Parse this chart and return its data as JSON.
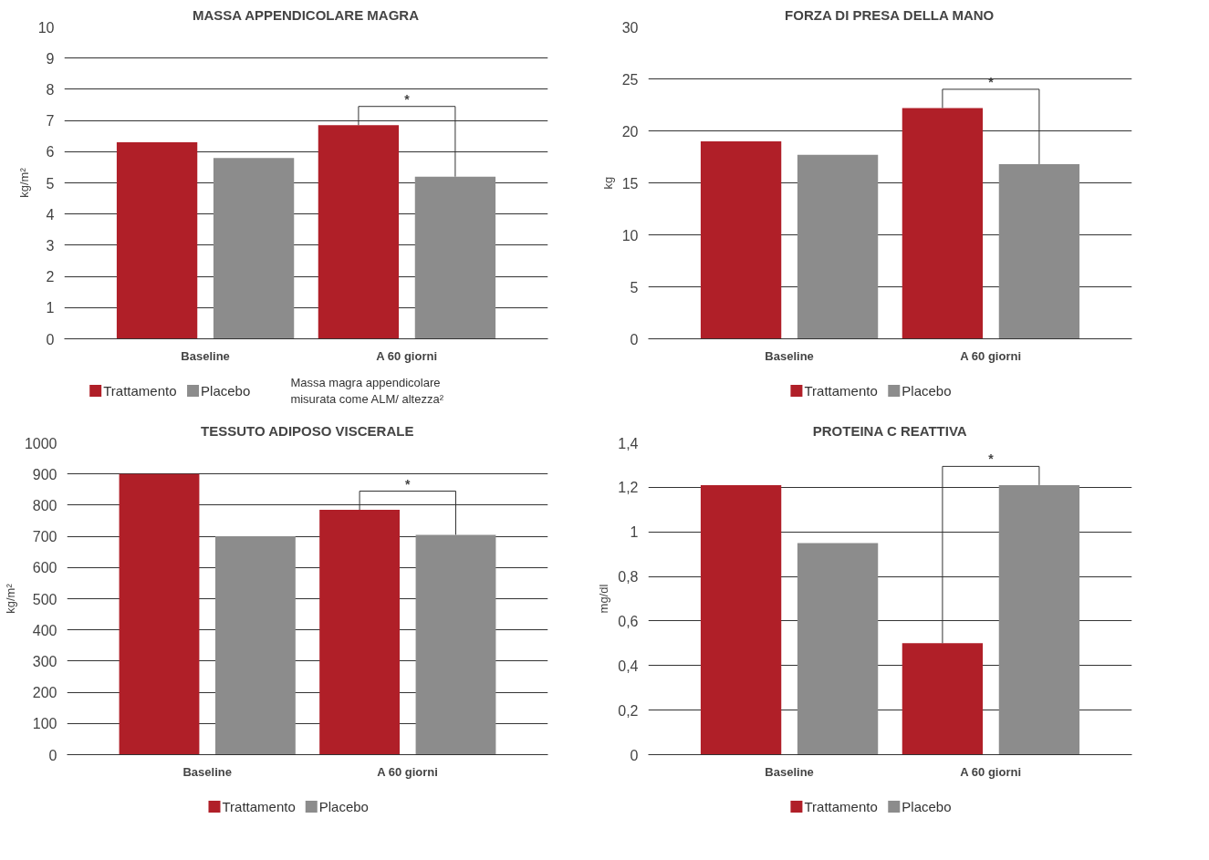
{
  "chart_data": [
    {
      "type": "bar",
      "title": "MASSA APPENDICOLARE MAGRA",
      "ylabel": "kg/m²",
      "categories": [
        "Baseline",
        "A 60 giorni"
      ],
      "series": [
        {
          "name": "Trattamento",
          "color": "#b01f28",
          "values": [
            6.3,
            6.85
          ]
        },
        {
          "name": "Placebo",
          "color": "#8c8c8c",
          "values": [
            5.8,
            5.2
          ]
        }
      ],
      "ylim": [
        0,
        10
      ],
      "yticks": [
        0,
        1,
        2,
        3,
        4,
        5,
        6,
        7,
        8,
        9,
        10
      ],
      "grid": "y",
      "legend": "bottom",
      "annotations": [
        "*",
        "Massa magra appendicolare misurata come ALM/ altezza²"
      ]
    },
    {
      "type": "bar",
      "title": "FORZA DI PRESA DELLA MANO",
      "ylabel": "kg",
      "categories": [
        "Baseline",
        "A 60 giorni"
      ],
      "series": [
        {
          "name": "Trattamento",
          "color": "#b01f28",
          "values": [
            19,
            22.2
          ]
        },
        {
          "name": "Placebo",
          "color": "#8c8c8c",
          "values": [
            17.7,
            16.8
          ]
        }
      ],
      "ylim": [
        0,
        30
      ],
      "yticks": [
        0,
        5,
        10,
        15,
        20,
        25,
        30
      ],
      "grid": "y",
      "legend": "bottom",
      "annotations": [
        "*"
      ]
    },
    {
      "type": "bar",
      "title": "TESSUTO ADIPOSO VISCERALE",
      "ylabel": "kg/m²",
      "categories": [
        "Baseline",
        "A 60 giorni"
      ],
      "series": [
        {
          "name": "Trattamento",
          "color": "#b01f28",
          "values": [
            900,
            785
          ]
        },
        {
          "name": "Placebo",
          "color": "#8c8c8c",
          "values": [
            700,
            705
          ]
        }
      ],
      "ylim": [
        0,
        1000
      ],
      "yticks": [
        0,
        100,
        200,
        300,
        400,
        500,
        600,
        700,
        800,
        900,
        1000
      ],
      "grid": "y",
      "legend": "bottom",
      "annotations": [
        "*"
      ]
    },
    {
      "type": "bar",
      "title": "PROTEINA C REATTIVA",
      "ylabel": "mg/dl",
      "categories": [
        "Baseline",
        "A 60 giorni"
      ],
      "series": [
        {
          "name": "Trattamento",
          "color": "#b01f28",
          "values": [
            1.21,
            0.5
          ]
        },
        {
          "name": "Placebo",
          "color": "#8c8c8c",
          "values": [
            0.95,
            1.21
          ]
        }
      ],
      "ylim": [
        0,
        1.4
      ],
      "yticks": [
        0,
        {
          "value": 0.2,
          "label": "0,2"
        },
        {
          "value": 0.4,
          "label": "0,4"
        },
        {
          "value": 0.6,
          "label": "0,6"
        },
        {
          "value": 0.8,
          "label": "0,8"
        },
        1,
        {
          "value": 1.2,
          "label": "1,2"
        },
        {
          "value": 1.4,
          "label": "1,4"
        }
      ],
      "grid": "y",
      "legend": "bottom",
      "annotations": [
        "*"
      ]
    }
  ]
}
